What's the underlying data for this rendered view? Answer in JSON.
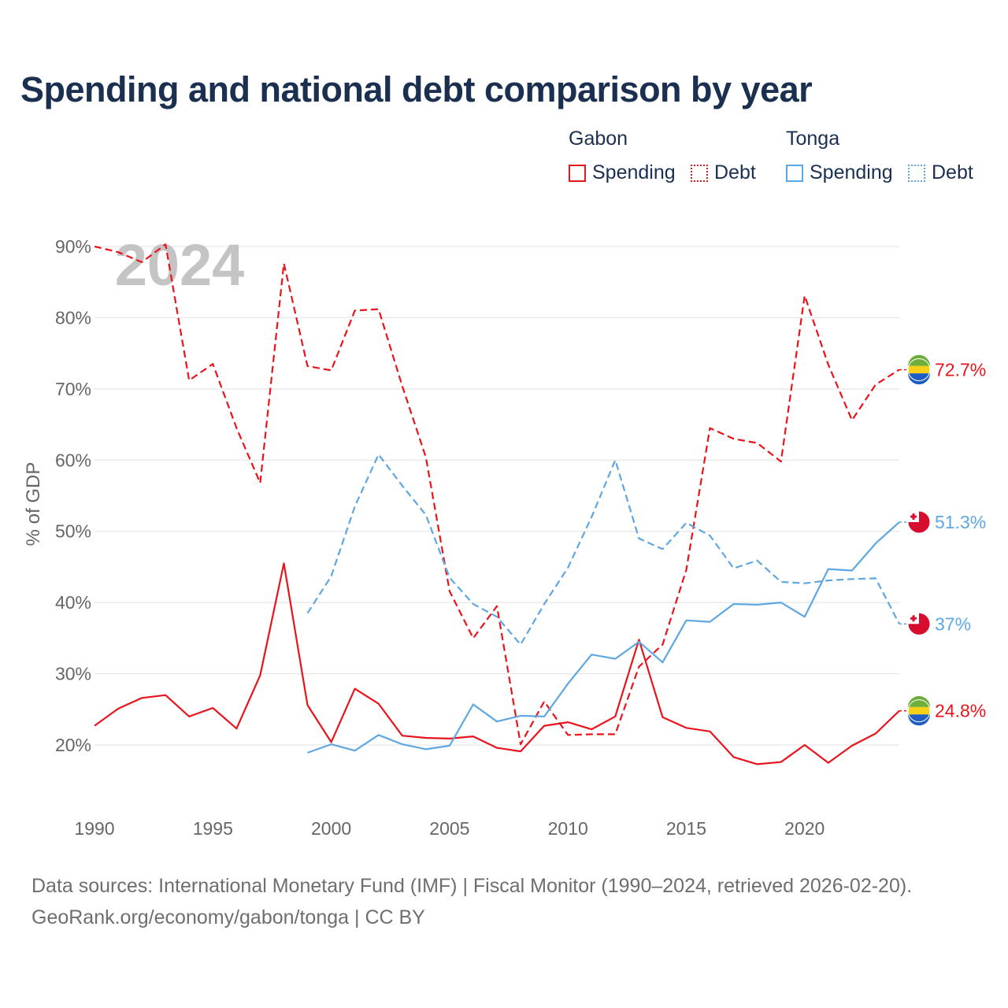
{
  "title": "Spending and national debt comparison by year",
  "legend": {
    "groups": [
      {
        "name": "Gabon",
        "color": "#e8141c",
        "items": [
          {
            "label": "Spending",
            "style": "solid"
          },
          {
            "label": "Debt",
            "style": "dotted"
          }
        ]
      },
      {
        "name": "Tonga",
        "color": "#5ea7e2",
        "items": [
          {
            "label": "Spending",
            "style": "solid"
          },
          {
            "label": "Debt",
            "style": "dotted"
          }
        ]
      }
    ]
  },
  "chart_data": {
    "type": "line",
    "ylabel": "% of GDP",
    "xlabel": "",
    "ylim": [
      10,
      92
    ],
    "xlim": [
      1990,
      2024
    ],
    "y_ticks": [
      20,
      30,
      40,
      50,
      60,
      70,
      80,
      90
    ],
    "y_tick_labels": [
      "20%",
      "30%",
      "40%",
      "50%",
      "60%",
      "70%",
      "80%",
      "90%"
    ],
    "x_ticks": [
      1990,
      1995,
      2000,
      2005,
      2010,
      2015,
      2020
    ],
    "x_tick_labels": [
      "1990",
      "1995",
      "2000",
      "2005",
      "2010",
      "2015",
      "2020"
    ],
    "grid": true,
    "year_watermark": "2024",
    "series": [
      {
        "name": "Gabon Spending",
        "country": "Gabon",
        "color": "#e8141c",
        "dash": "solid",
        "end_label": "24.8%",
        "points": [
          [
            1990,
            22.7
          ],
          [
            1991,
            25.1
          ],
          [
            1992,
            26.6
          ],
          [
            1993,
            27.0
          ],
          [
            1994,
            24.0
          ],
          [
            1995,
            25.2
          ],
          [
            1996,
            22.3
          ],
          [
            1997,
            29.8
          ],
          [
            1998,
            45.5
          ],
          [
            1999,
            25.6
          ],
          [
            2000,
            20.4
          ],
          [
            2001,
            27.9
          ],
          [
            2002,
            25.8
          ],
          [
            2003,
            21.3
          ],
          [
            2004,
            21.0
          ],
          [
            2005,
            20.9
          ],
          [
            2006,
            21.2
          ],
          [
            2007,
            19.6
          ],
          [
            2008,
            19.1
          ],
          [
            2009,
            22.7
          ],
          [
            2010,
            23.2
          ],
          [
            2011,
            22.2
          ],
          [
            2012,
            24.0
          ],
          [
            2013,
            34.8
          ],
          [
            2014,
            23.9
          ],
          [
            2015,
            22.4
          ],
          [
            2016,
            21.9
          ],
          [
            2017,
            18.3
          ],
          [
            2018,
            17.3
          ],
          [
            2019,
            17.6
          ],
          [
            2020,
            20.0
          ],
          [
            2021,
            17.5
          ],
          [
            2022,
            19.9
          ],
          [
            2023,
            21.6
          ],
          [
            2024,
            24.8
          ]
        ]
      },
      {
        "name": "Gabon Debt",
        "country": "Gabon",
        "color": "#e8141c",
        "dash": "dashed",
        "end_label": "72.7%",
        "points": [
          [
            1990,
            90.0
          ],
          [
            1991,
            89.2
          ],
          [
            1992,
            87.8
          ],
          [
            1993,
            90.3
          ],
          [
            1994,
            71.2
          ],
          [
            1995,
            73.5
          ],
          [
            1996,
            64.5
          ],
          [
            1997,
            56.8
          ],
          [
            1998,
            87.6
          ],
          [
            1999,
            73.2
          ],
          [
            2000,
            72.6
          ],
          [
            2001,
            81.0
          ],
          [
            2002,
            81.2
          ],
          [
            2003,
            70.4
          ],
          [
            2004,
            60.4
          ],
          [
            2005,
            41.6
          ],
          [
            2006,
            35.0
          ],
          [
            2007,
            39.5
          ],
          [
            2008,
            20.1
          ],
          [
            2009,
            26.1
          ],
          [
            2010,
            21.4
          ],
          [
            2011,
            21.5
          ],
          [
            2012,
            21.5
          ],
          [
            2013,
            31.0
          ],
          [
            2014,
            34.1
          ],
          [
            2015,
            44.6
          ],
          [
            2016,
            64.5
          ],
          [
            2017,
            63.0
          ],
          [
            2018,
            62.4
          ],
          [
            2019,
            59.8
          ],
          [
            2020,
            83.1
          ],
          [
            2021,
            73.4
          ],
          [
            2022,
            65.6
          ],
          [
            2023,
            70.6
          ],
          [
            2024,
            72.7
          ]
        ]
      },
      {
        "name": "Tonga Spending",
        "country": "Tonga",
        "color": "#5ea7e2",
        "dash": "solid",
        "end_label": "51.3%",
        "points": [
          [
            1999,
            18.9
          ],
          [
            2000,
            20.1
          ],
          [
            2001,
            19.2
          ],
          [
            2002,
            21.4
          ],
          [
            2003,
            20.1
          ],
          [
            2004,
            19.4
          ],
          [
            2005,
            19.9
          ],
          [
            2006,
            25.7
          ],
          [
            2007,
            23.3
          ],
          [
            2008,
            24.1
          ],
          [
            2009,
            24.0
          ],
          [
            2010,
            28.6
          ],
          [
            2011,
            32.7
          ],
          [
            2012,
            32.1
          ],
          [
            2013,
            34.5
          ],
          [
            2014,
            31.6
          ],
          [
            2015,
            37.5
          ],
          [
            2016,
            37.3
          ],
          [
            2017,
            39.8
          ],
          [
            2018,
            39.7
          ],
          [
            2019,
            40.0
          ],
          [
            2020,
            38.0
          ],
          [
            2021,
            44.7
          ],
          [
            2022,
            44.5
          ],
          [
            2023,
            48.3
          ],
          [
            2024,
            51.3
          ]
        ]
      },
      {
        "name": "Tonga Debt",
        "country": "Tonga",
        "color": "#5ea7e2",
        "dash": "dashed",
        "end_label": "37%",
        "points": [
          [
            1999,
            38.5
          ],
          [
            2000,
            43.7
          ],
          [
            2001,
            53.5
          ],
          [
            2002,
            60.8
          ],
          [
            2003,
            56.4
          ],
          [
            2004,
            52.3
          ],
          [
            2005,
            43.5
          ],
          [
            2006,
            39.8
          ],
          [
            2007,
            38.0
          ],
          [
            2008,
            34.1
          ],
          [
            2009,
            39.8
          ],
          [
            2010,
            44.9
          ],
          [
            2011,
            52.0
          ],
          [
            2012,
            60.0
          ],
          [
            2013,
            49.0
          ],
          [
            2014,
            47.5
          ],
          [
            2015,
            51.2
          ],
          [
            2016,
            49.4
          ],
          [
            2017,
            44.8
          ],
          [
            2018,
            45.9
          ],
          [
            2019,
            42.9
          ],
          [
            2020,
            42.7
          ],
          [
            2021,
            43.1
          ],
          [
            2022,
            43.3
          ],
          [
            2023,
            43.4
          ],
          [
            2024,
            37.0
          ]
        ]
      }
    ]
  },
  "footer": {
    "line1": "Data sources: International Monetary Fund (IMF) | Fiscal Monitor (1990–2024, retrieved 2026-02-20).",
    "line2": "GeoRank.org/economy/gabon/tonga | CC BY"
  }
}
